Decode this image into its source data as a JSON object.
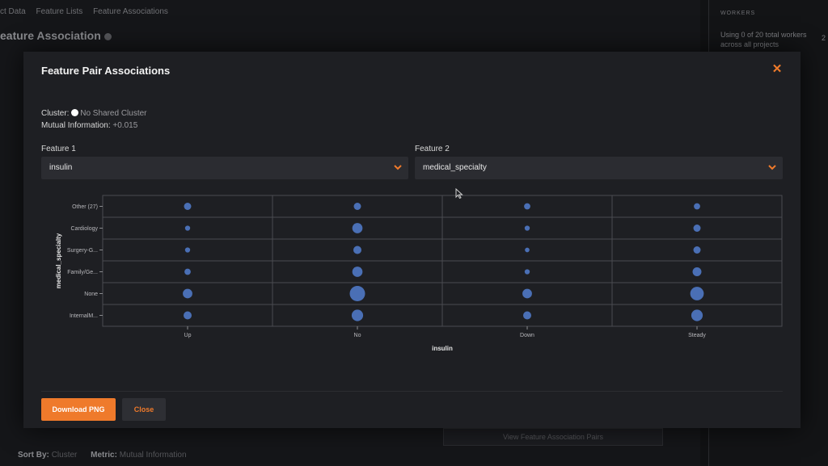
{
  "background": {
    "breadcrumbs": [
      "ct Data",
      "Feature Lists",
      "Feature Associations"
    ],
    "title": "eature Association",
    "workers_heading": "WORKERS",
    "workers_text": "Using 0 of 20 total workers across all projects",
    "workers_count": "2",
    "view_button": "View Feature Association Pairs",
    "sort_label": "Sort By:",
    "sort_value": "Cluster",
    "metric_label": "Metric:",
    "metric_value": "Mutual Information"
  },
  "modal": {
    "title": "Feature Pair Associations",
    "close_icon": "close-icon",
    "cluster_label": "Cluster:",
    "cluster_value": "No Shared Cluster",
    "mi_label": "Mutual Information:",
    "mi_value": "+0.015",
    "feature1_label": "Feature 1",
    "feature1_value": "insulin",
    "feature2_label": "Feature 2",
    "feature2_value": "medical_specialty",
    "download_label": "Download PNG",
    "close_label": "Close"
  },
  "colors": {
    "accent": "#ef7a2b",
    "bubble": "#4a6fb5",
    "modal_bg": "#1e1f23",
    "select_bg": "#2b2c31"
  },
  "chart_data": {
    "type": "scatter",
    "encoding": "bubble size shows relative frequency",
    "xlabel": "insulin",
    "ylabel": "medical_specialty",
    "x_categories": [
      "Up",
      "No",
      "Down",
      "Steady"
    ],
    "y_categories": [
      "Other (27)",
      "Cardiology",
      "Surgery-G...",
      "Family/Ge...",
      "None",
      "InternalM..."
    ],
    "grid": true,
    "points": [
      {
        "x": "Up",
        "y": "Other (27)",
        "size": 2
      },
      {
        "x": "No",
        "y": "Other (27)",
        "size": 2
      },
      {
        "x": "Down",
        "y": "Other (27)",
        "size": 1.5
      },
      {
        "x": "Steady",
        "y": "Other (27)",
        "size": 1.5
      },
      {
        "x": "Up",
        "y": "Cardiology",
        "size": 1
      },
      {
        "x": "No",
        "y": "Cardiology",
        "size": 4
      },
      {
        "x": "Down",
        "y": "Cardiology",
        "size": 1
      },
      {
        "x": "Steady",
        "y": "Cardiology",
        "size": 2
      },
      {
        "x": "Up",
        "y": "Surgery-G...",
        "size": 1
      },
      {
        "x": "No",
        "y": "Surgery-G...",
        "size": 2.5
      },
      {
        "x": "Down",
        "y": "Surgery-G...",
        "size": 0.8
      },
      {
        "x": "Steady",
        "y": "Surgery-G...",
        "size": 2
      },
      {
        "x": "Up",
        "y": "Family/Ge...",
        "size": 1.5
      },
      {
        "x": "No",
        "y": "Family/Ge...",
        "size": 4
      },
      {
        "x": "Down",
        "y": "Family/Ge...",
        "size": 1
      },
      {
        "x": "Steady",
        "y": "Family/Ge...",
        "size": 3
      },
      {
        "x": "Up",
        "y": "None",
        "size": 3.5
      },
      {
        "x": "No",
        "y": "None",
        "size": 9
      },
      {
        "x": "Down",
        "y": "None",
        "size": 3.5
      },
      {
        "x": "Steady",
        "y": "None",
        "size": 7
      },
      {
        "x": "Up",
        "y": "InternalM...",
        "size": 2.5
      },
      {
        "x": "No",
        "y": "InternalM...",
        "size": 5
      },
      {
        "x": "Down",
        "y": "InternalM...",
        "size": 2.5
      },
      {
        "x": "Steady",
        "y": "InternalM...",
        "size": 5
      }
    ]
  }
}
